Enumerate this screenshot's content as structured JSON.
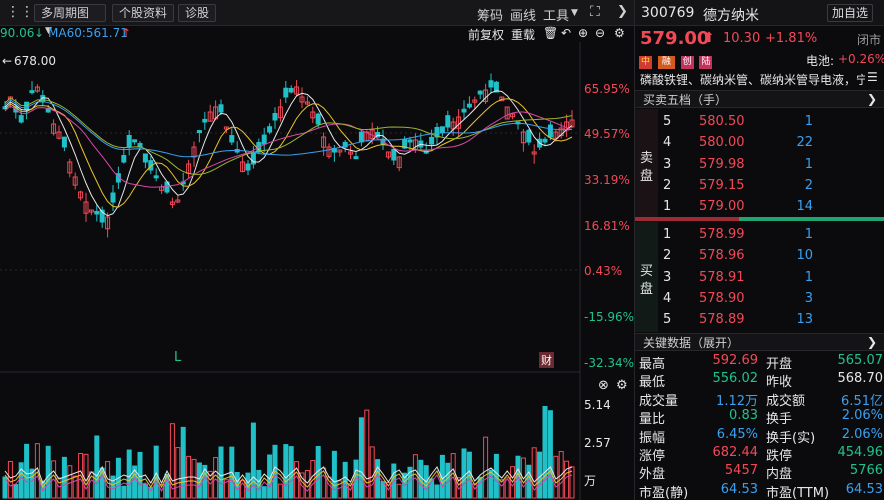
{
  "toolbar": {
    "period": "多周期图",
    "stock_info": "个股资料",
    "diagnose": "诊股",
    "chips": "筹码",
    "draw": "画线",
    "tools": "工具",
    "restore": "前复权",
    "overlay": "重载"
  },
  "ma": {
    "left": "90.06",
    "ma60": "MA60:561.71"
  },
  "chart": {
    "high_label": "678.00",
    "pct_labels": [
      "65.95%",
      "49.57%",
      "33.19%",
      "16.81%",
      "0.43%",
      "-15.96%",
      "-32.34%"
    ],
    "vol_labels": [
      "5.14",
      "2.57",
      "万"
    ],
    "marker_L": "L",
    "marker_cai": "财"
  },
  "quote": {
    "code": "300769",
    "name": "德方纳米",
    "add_btn": "加自选",
    "price": "579.00",
    "change": "10.30",
    "change_pct": "+1.81%",
    "status": "闭市",
    "board_label": "电池:",
    "board_pct": "+0.26%",
    "badges": [
      "中",
      "融",
      "创",
      "陆"
    ],
    "concepts": "磷酸铁锂、碳纳米管、碳纳米管导电液，宁德..."
  },
  "orderbook": {
    "title": "买卖五档（手）",
    "sell_label": [
      "卖",
      "盘"
    ],
    "buy_label": [
      "买",
      "盘"
    ],
    "sells": [
      {
        "lvl": "5",
        "price": "580.50",
        "vol": "1"
      },
      {
        "lvl": "4",
        "price": "580.00",
        "vol": "22"
      },
      {
        "lvl": "3",
        "price": "579.98",
        "vol": "1"
      },
      {
        "lvl": "2",
        "price": "579.15",
        "vol": "2"
      },
      {
        "lvl": "1",
        "price": "579.00",
        "vol": "14"
      }
    ],
    "buys": [
      {
        "lvl": "1",
        "price": "578.99",
        "vol": "1"
      },
      {
        "lvl": "2",
        "price": "578.96",
        "vol": "10"
      },
      {
        "lvl": "3",
        "price": "578.91",
        "vol": "1"
      },
      {
        "lvl": "4",
        "price": "578.90",
        "vol": "3"
      },
      {
        "lvl": "5",
        "price": "578.89",
        "vol": "13"
      }
    ]
  },
  "keydata": {
    "title": "关键数据（展开）",
    "rows": [
      {
        "l1": "最高",
        "v1": "592.69",
        "c1": "red",
        "l2": "开盘",
        "v2": "565.07",
        "c2": "green"
      },
      {
        "l1": "最低",
        "v1": "556.02",
        "c1": "green",
        "l2": "昨收",
        "v2": "568.70",
        "c2": "white"
      },
      {
        "l1": "成交量",
        "v1": "1.12万",
        "c1": "blue",
        "l2": "成交额",
        "v2": "6.51亿",
        "c2": "blue"
      },
      {
        "l1": "量比",
        "v1": "0.83",
        "c1": "green",
        "l2": "换手",
        "v2": "2.06%",
        "c2": "blue"
      },
      {
        "l1": "振幅",
        "v1": "6.45%",
        "c1": "blue",
        "l2": "换手(实)",
        "v2": "2.06%",
        "c2": "blue"
      },
      {
        "l1": "涨停",
        "v1": "682.44",
        "c1": "red",
        "l2": "跌停",
        "v2": "454.96",
        "c2": "green"
      },
      {
        "l1": "外盘",
        "v1": "5457",
        "c1": "red",
        "l2": "内盘",
        "v2": "5766",
        "c2": "green"
      },
      {
        "l1": "市盈(静)",
        "v1": "64.53",
        "c1": "blue",
        "l2": "市盈(TTM)",
        "v2": "64.53",
        "c2": "blue"
      }
    ]
  }
}
